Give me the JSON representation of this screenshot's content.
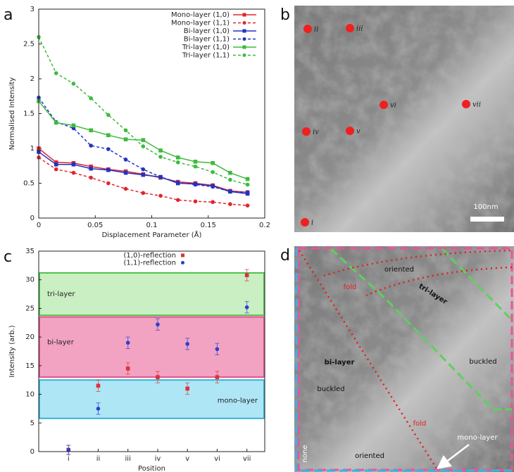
{
  "chart_data": [
    {
      "type": "line",
      "panel_label": "a",
      "ylabel": "Normalised Intensity",
      "xlabel": "Displacement Parameter (Å)",
      "x": [
        0,
        0.0154,
        0.0308,
        0.0462,
        0.0616,
        0.077,
        0.0924,
        0.1078,
        0.1232,
        0.1386,
        0.154,
        0.1694,
        0.1848
      ],
      "xlim": [
        0,
        0.2
      ],
      "xticks": [
        0,
        0.05,
        0.1,
        0.15,
        0.2
      ],
      "ylim": [
        0,
        3
      ],
      "yticks": [
        0,
        0.5,
        1,
        1.5,
        2,
        2.5,
        3
      ],
      "legend": "top-right",
      "series": [
        {
          "name": "Mono-layer (1,0)",
          "color": "#e3242b",
          "linestyle": "solid",
          "marker": "square",
          "values": [
            1.0,
            0.8,
            0.79,
            0.74,
            0.7,
            0.67,
            0.63,
            0.58,
            0.52,
            0.5,
            0.47,
            0.39,
            0.37
          ]
        },
        {
          "name": "Mono-layer (1,1)",
          "color": "#e3242b",
          "linestyle": "dashed",
          "marker": "circle",
          "values": [
            0.87,
            0.7,
            0.65,
            0.58,
            0.5,
            0.42,
            0.36,
            0.32,
            0.26,
            0.24,
            0.23,
            0.2,
            0.18
          ]
        },
        {
          "name": "Bi-layer (1,0)",
          "color": "#2233c4",
          "linestyle": "solid",
          "marker": "square",
          "values": [
            0.95,
            0.77,
            0.77,
            0.71,
            0.69,
            0.65,
            0.62,
            0.59,
            0.5,
            0.49,
            0.46,
            0.38,
            0.35
          ]
        },
        {
          "name": "Bi-layer (1,1)",
          "color": "#2233c4",
          "linestyle": "dashed",
          "marker": "circle",
          "values": [
            1.73,
            1.38,
            1.29,
            1.04,
            0.99,
            0.84,
            0.7,
            0.59,
            0.51,
            0.48,
            0.45,
            0.38,
            0.37
          ]
        },
        {
          "name": "Tri-layer (1,0)",
          "color": "#3dbb3d",
          "linestyle": "solid",
          "marker": "square",
          "values": [
            1.68,
            1.37,
            1.33,
            1.26,
            1.19,
            1.13,
            1.12,
            0.97,
            0.87,
            0.81,
            0.79,
            0.65,
            0.56
          ]
        },
        {
          "name": "Tri-layer (1,1)",
          "color": "#3dbb3d",
          "linestyle": "dashed",
          "marker": "circle",
          "values": [
            2.6,
            2.08,
            1.93,
            1.72,
            1.48,
            1.26,
            1.03,
            0.88,
            0.8,
            0.74,
            0.66,
            0.55,
            0.48
          ]
        }
      ]
    },
    {
      "type": "scatter",
      "panel_label": "c",
      "ylabel": "Intensity (arb.)",
      "xlabel": "Position",
      "categories": [
        "i",
        "ii",
        "iii",
        "iv",
        "v",
        "vi",
        "vii"
      ],
      "ylim": [
        0,
        35
      ],
      "yticks": [
        0,
        5,
        10,
        15,
        20,
        25,
        30,
        35
      ],
      "legend": "top-center",
      "bands": [
        {
          "label": "tri-layer",
          "range": [
            23.8,
            31.2
          ],
          "color": "#c9efc2",
          "edge": "#4cc24c"
        },
        {
          "label": "bi-layer",
          "range": [
            13,
            23.5
          ],
          "color": "#f2a3c2",
          "edge": "#e2508c"
        },
        {
          "label": "mono-layer",
          "range": [
            5.8,
            12.5
          ],
          "color": "#aee6f5",
          "edge": "#35b3d8"
        }
      ],
      "series": [
        {
          "name": "(1,0)-reflection",
          "color": "#d9343a",
          "marker": "square",
          "values": [
            0.3,
            11.5,
            14.5,
            13,
            11,
            13,
            30.8
          ],
          "errors": [
            0.8,
            1,
            1,
            1,
            1,
            1,
            1
          ]
        },
        {
          "name": "(1,1)-reflection",
          "color": "#2a3fd0",
          "marker": "circle",
          "values": [
            0.3,
            7.5,
            19,
            22.2,
            18.8,
            17.9,
            25.2
          ],
          "errors": [
            0.8,
            1,
            1,
            1,
            1,
            1,
            1
          ]
        }
      ]
    }
  ],
  "images": [
    {
      "panel_label": "b",
      "labels": [
        "ii",
        "iii",
        "vi",
        "vii",
        "iv",
        "v",
        "i"
      ],
      "scale_bar": "100nm"
    },
    {
      "panel_label": "d",
      "labels": [
        "oriented",
        "fold",
        "tri-layer",
        "bi-layer",
        "buckled",
        "buckled",
        "fold",
        "oriented",
        "none",
        "mono-layer"
      ]
    }
  ]
}
